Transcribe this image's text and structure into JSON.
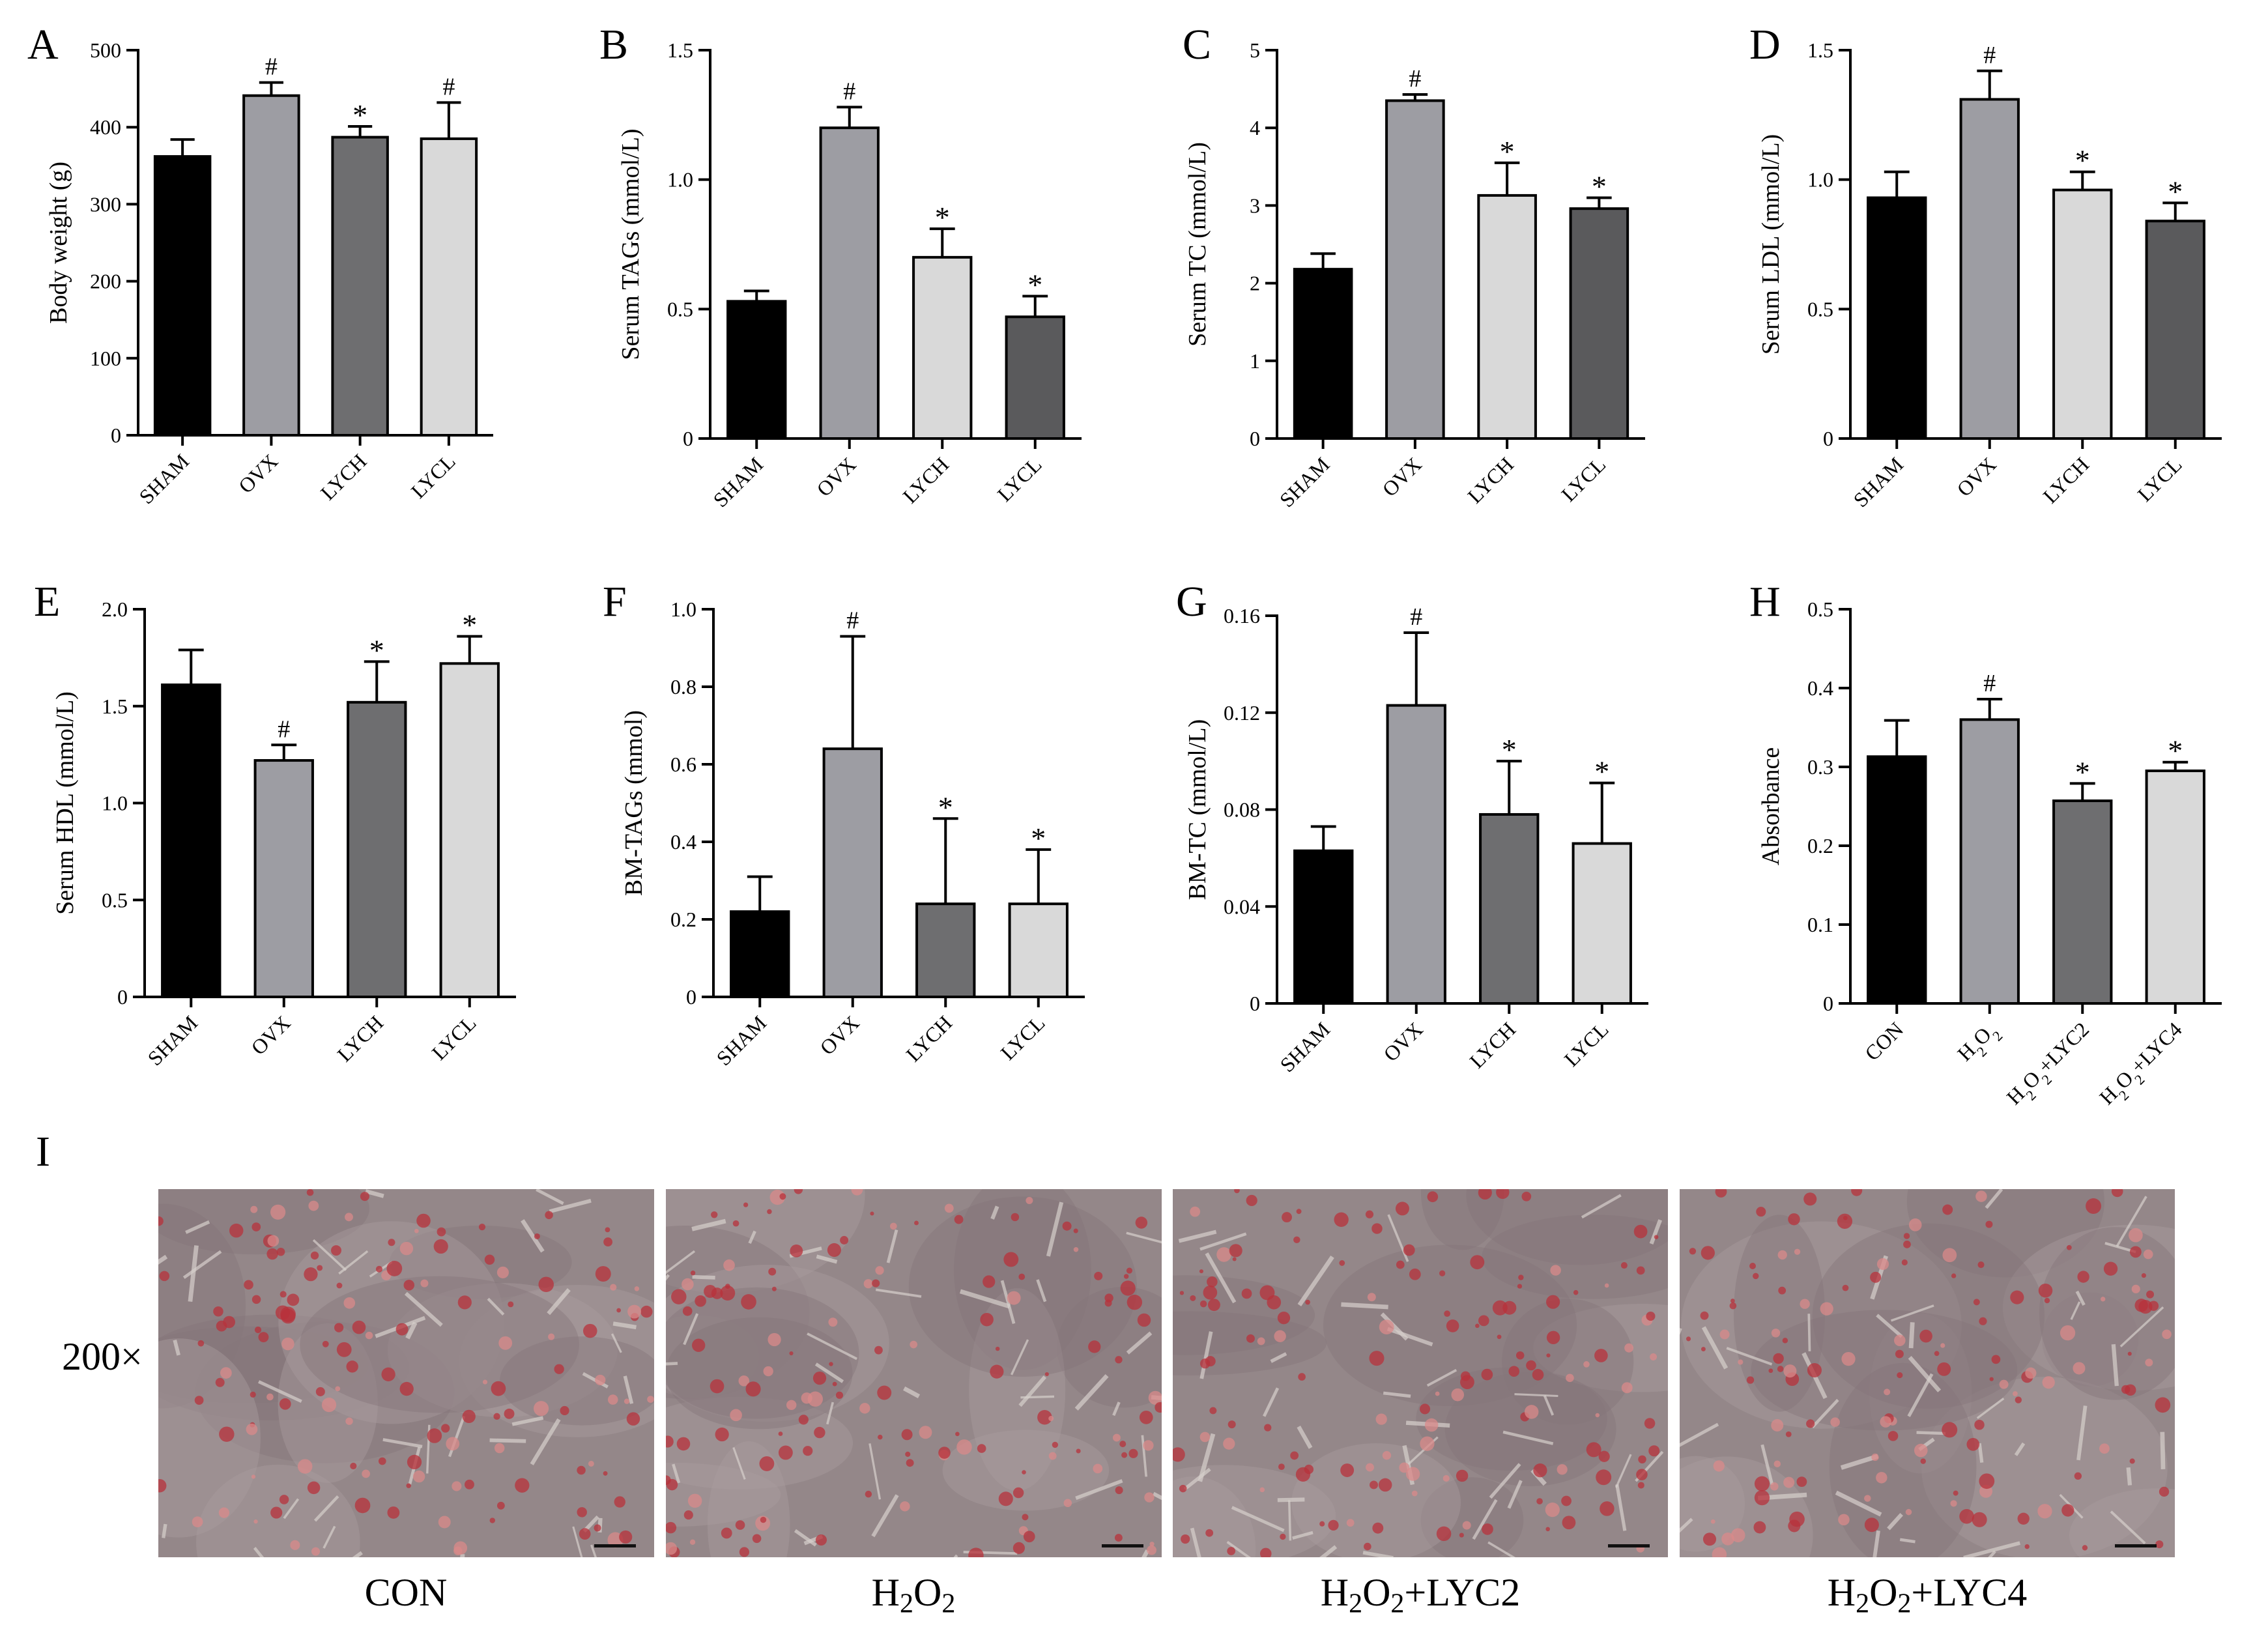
{
  "colors": {
    "black": "#000000",
    "grey_mid": "#9d9da3",
    "grey_dark": "#6e6e70",
    "grey_light": "#d9d9d9",
    "grey_darkest": "#5a5a5c"
  },
  "chart_data": [
    {
      "panel": "A",
      "type": "bar",
      "categories": [
        "SHAM",
        "OVX",
        "LYCH",
        "LYCL"
      ],
      "values": [
        362,
        441,
        387,
        385
      ],
      "errors": [
        22,
        17,
        14,
        47
      ],
      "annotations": [
        "",
        "#",
        "*",
        "#"
      ],
      "colors": [
        "#000000",
        "#9d9da3",
        "#6e6e70",
        "#d9d9d9"
      ],
      "ylabel": "Body weight (g)",
      "ylim": [
        0,
        500
      ],
      "yticks": [
        0,
        100,
        200,
        300,
        400,
        500
      ],
      "ytick_labels": [
        "0",
        "100",
        "200",
        "300",
        "400",
        "500"
      ],
      "grid": false
    },
    {
      "panel": "B",
      "type": "bar",
      "categories": [
        "SHAM",
        "OVX",
        "LYCH",
        "LYCL"
      ],
      "values": [
        0.53,
        1.2,
        0.7,
        0.47
      ],
      "errors": [
        0.04,
        0.08,
        0.11,
        0.08
      ],
      "annotations": [
        "",
        "#",
        "*",
        "*"
      ],
      "colors": [
        "#000000",
        "#9d9da3",
        "#d9d9d9",
        "#5a5a5c"
      ],
      "ylabel": "Serum TAGs (mmol/L)",
      "ylim": [
        0,
        1.5
      ],
      "yticks": [
        0,
        0.5,
        1.0,
        1.5
      ],
      "ytick_labels": [
        "0",
        "0.5",
        "1.0",
        "1.5"
      ],
      "grid": false
    },
    {
      "panel": "C",
      "type": "bar",
      "categories": [
        "SHAM",
        "OVX",
        "LYCH",
        "LYCL"
      ],
      "values": [
        2.18,
        4.35,
        3.13,
        2.96
      ],
      "errors": [
        0.2,
        0.08,
        0.42,
        0.14
      ],
      "annotations": [
        "",
        "#",
        "*",
        "*"
      ],
      "colors": [
        "#000000",
        "#9d9da3",
        "#d9d9d9",
        "#5a5a5c"
      ],
      "ylabel": "Serum TC (mmol/L)",
      "ylim": [
        0,
        5
      ],
      "yticks": [
        0,
        1,
        2,
        3,
        4,
        5
      ],
      "ytick_labels": [
        "0",
        "1",
        "2",
        "3",
        "4",
        "5"
      ],
      "grid": false
    },
    {
      "panel": "D",
      "type": "bar",
      "categories": [
        "SHAM",
        "OVX",
        "LYCH",
        "LYCL"
      ],
      "values": [
        0.93,
        1.31,
        0.96,
        0.84
      ],
      "errors": [
        0.1,
        0.11,
        0.07,
        0.07
      ],
      "annotations": [
        "",
        "#",
        "*",
        "*"
      ],
      "colors": [
        "#000000",
        "#9d9da3",
        "#d9d9d9",
        "#5a5a5c"
      ],
      "ylabel": "Serum LDL (mmol/L)",
      "ylim": [
        0,
        1.5
      ],
      "yticks": [
        0,
        0.5,
        1.0,
        1.5
      ],
      "ytick_labels": [
        "0",
        "0.5",
        "1.0",
        "1.5"
      ],
      "grid": false
    },
    {
      "panel": "E",
      "type": "bar",
      "categories": [
        "SHAM",
        "OVX",
        "LYCH",
        "LYCL"
      ],
      "values": [
        1.61,
        1.22,
        1.52,
        1.72
      ],
      "errors": [
        0.18,
        0.08,
        0.21,
        0.14
      ],
      "annotations": [
        "",
        "#",
        "*",
        "*"
      ],
      "colors": [
        "#000000",
        "#9d9da3",
        "#6e6e70",
        "#d9d9d9"
      ],
      "ylabel": "Serum HDL (mmol/L)",
      "ylim": [
        0,
        2.0
      ],
      "yticks": [
        0,
        0.5,
        1.0,
        1.5,
        2.0
      ],
      "ytick_labels": [
        "0",
        "0.5",
        "1.0",
        "1.5",
        "2.0"
      ],
      "grid": false
    },
    {
      "panel": "F",
      "type": "bar",
      "categories": [
        "SHAM",
        "OVX",
        "LYCH",
        "LYCL"
      ],
      "values": [
        0.22,
        0.64,
        0.24,
        0.24
      ],
      "errors": [
        0.09,
        0.29,
        0.22,
        0.14
      ],
      "annotations": [
        "",
        "#",
        "*",
        "*"
      ],
      "colors": [
        "#000000",
        "#9d9da3",
        "#6e6e70",
        "#d9d9d9"
      ],
      "ylabel": "BM-TAGs (mmol)",
      "ylim": [
        0,
        1.0
      ],
      "yticks": [
        0,
        0.2,
        0.4,
        0.6,
        0.8,
        1.0
      ],
      "ytick_labels": [
        "0",
        "0.2",
        "0.4",
        "0.6",
        "0.8",
        "1.0"
      ],
      "grid": false
    },
    {
      "panel": "G",
      "type": "bar",
      "categories": [
        "SHAM",
        "OVX",
        "LYCH",
        "LYCL"
      ],
      "values": [
        0.063,
        0.123,
        0.078,
        0.066
      ],
      "errors": [
        0.01,
        0.03,
        0.022,
        0.025
      ],
      "annotations": [
        "",
        "#",
        "*",
        "*"
      ],
      "colors": [
        "#000000",
        "#9d9da3",
        "#6e6e70",
        "#d9d9d9"
      ],
      "ylabel": "BM-TC (mmol/L)",
      "ylim": [
        0,
        0.16
      ],
      "yticks": [
        0,
        0.04,
        0.08,
        0.12,
        0.16
      ],
      "ytick_labels": [
        "0",
        "0.04",
        "0.08",
        "0.12",
        "0.16"
      ],
      "grid": false
    },
    {
      "panel": "H",
      "type": "bar",
      "categories": [
        "CON",
        "H2O2",
        "H2O2+LYC2",
        "H2O2+LYC4"
      ],
      "values": [
        0.313,
        0.36,
        0.257,
        0.295
      ],
      "errors": [
        0.046,
        0.026,
        0.022,
        0.011
      ],
      "annotations": [
        "",
        "#",
        "*",
        "*"
      ],
      "colors": [
        "#000000",
        "#9d9da3",
        "#6e6e70",
        "#d9d9d9"
      ],
      "ylabel": "Absorbance",
      "ylim": [
        0,
        0.5
      ],
      "yticks": [
        0,
        0.1,
        0.2,
        0.3,
        0.4,
        0.5
      ],
      "ytick_labels": [
        "0",
        "0.1",
        "0.2",
        "0.3",
        "0.4",
        "0.5"
      ],
      "grid": false
    }
  ],
  "micrographs": {
    "panel_label": "I",
    "magnification": "200×",
    "captions": [
      {
        "main": "CON",
        "parts": [
          "CON"
        ]
      },
      {
        "main": "H2O2",
        "parts": [
          "H",
          "2",
          "O",
          "2"
        ]
      },
      {
        "main": "H2O2+LYC2",
        "parts": [
          "H",
          "2",
          "O",
          "2",
          "+LYC2"
        ]
      },
      {
        "main": "H2O2+LYC4",
        "parts": [
          "H",
          "2",
          "O",
          "2",
          "+LYC4"
        ]
      }
    ]
  }
}
